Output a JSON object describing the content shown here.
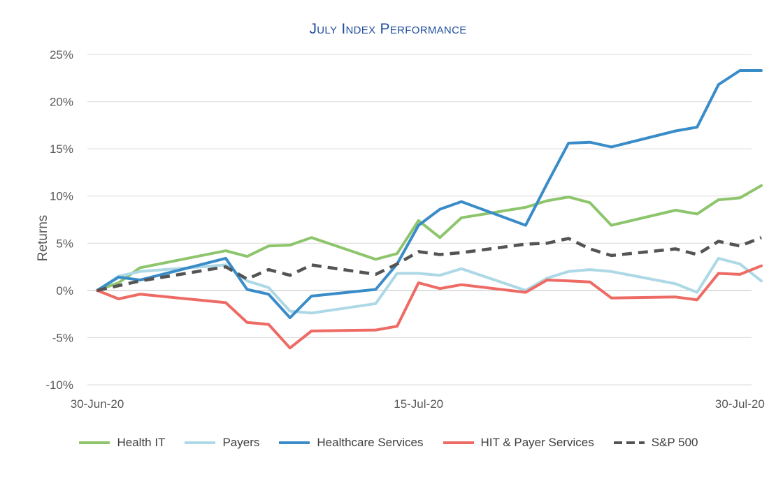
{
  "chart_data": {
    "type": "line",
    "title": "July Index Performance",
    "ylabel": "Returns",
    "xlabel": "",
    "ylim": [
      -10,
      25
    ],
    "yticks": [
      -10,
      -5,
      0,
      5,
      10,
      15,
      20,
      25
    ],
    "ytick_labels": [
      "-10%",
      "-5%",
      "0%",
      "5%",
      "10%",
      "15%",
      "20%",
      "25%"
    ],
    "xlim": [
      "2020-06-30",
      "2020-07-31"
    ],
    "xticks": [
      "2020-06-30",
      "2020-07-15",
      "2020-07-30"
    ],
    "xtick_labels": [
      "30-Jun-20",
      "15-Jul-20",
      "30-Jul-20"
    ],
    "grid": "horizontal",
    "legend_position": "bottom",
    "x": [
      "2020-06-30",
      "2020-07-01",
      "2020-07-02",
      "2020-07-06",
      "2020-07-07",
      "2020-07-08",
      "2020-07-09",
      "2020-07-10",
      "2020-07-13",
      "2020-07-14",
      "2020-07-15",
      "2020-07-16",
      "2020-07-17",
      "2020-07-20",
      "2020-07-21",
      "2020-07-22",
      "2020-07-23",
      "2020-07-24",
      "2020-07-27",
      "2020-07-28",
      "2020-07-29",
      "2020-07-30",
      "2020-07-31"
    ],
    "series": [
      {
        "name": "Health IT",
        "color": "#8dc56c",
        "dash": false,
        "values": [
          0.0,
          0.8,
          2.4,
          4.2,
          3.6,
          4.7,
          4.8,
          5.6,
          3.3,
          3.9,
          7.4,
          5.6,
          7.7,
          8.8,
          9.5,
          9.9,
          9.3,
          6.9,
          8.5,
          8.1,
          9.6,
          9.8,
          11.1
        ]
      },
      {
        "name": "Payers",
        "color": "#add8e6",
        "dash": false,
        "values": [
          0.0,
          1.5,
          2.0,
          2.7,
          1.0,
          0.3,
          -2.2,
          -2.4,
          -1.4,
          1.8,
          1.8,
          1.6,
          2.3,
          0.0,
          1.3,
          2.0,
          2.2,
          2.0,
          0.7,
          -0.2,
          3.4,
          2.8,
          1.0
        ]
      },
      {
        "name": "Healthcare Services",
        "color": "#3a8cc9",
        "dash": false,
        "values": [
          0.0,
          1.4,
          1.1,
          3.4,
          0.1,
          -0.4,
          -2.9,
          -0.6,
          0.1,
          2.8,
          6.9,
          8.6,
          9.4,
          6.9,
          11.3,
          15.6,
          15.7,
          15.2,
          16.9,
          17.3,
          21.8,
          23.3,
          23.3
        ]
      },
      {
        "name": "HIT & Payer Services",
        "color": "#ee6a64",
        "dash": false,
        "values": [
          0.0,
          -0.9,
          -0.4,
          -1.3,
          -3.4,
          -3.6,
          -6.1,
          -4.3,
          -4.2,
          -3.8,
          0.8,
          0.2,
          0.6,
          -0.2,
          1.1,
          1.0,
          0.9,
          -0.8,
          -0.7,
          -1.0,
          1.8,
          1.7,
          2.6
        ]
      },
      {
        "name": "S&P 500",
        "color": "#545454",
        "dash": true,
        "values": [
          0.0,
          0.5,
          1.0,
          2.5,
          1.2,
          2.2,
          1.6,
          2.7,
          1.7,
          2.8,
          4.1,
          3.8,
          4.0,
          4.9,
          5.0,
          5.5,
          4.4,
          3.7,
          4.4,
          3.8,
          5.2,
          4.7,
          5.6
        ]
      }
    ]
  }
}
